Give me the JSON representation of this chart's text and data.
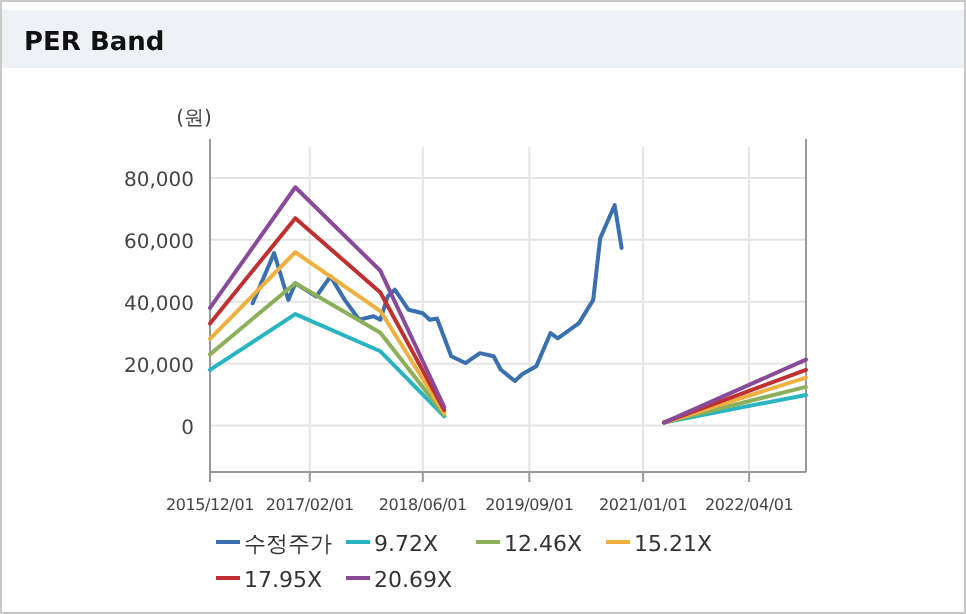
{
  "chart_data": {
    "type": "line",
    "title": "PER Band",
    "ylabel": "(원)",
    "xlim": [
      "2015-12-01",
      "2022-12-01"
    ],
    "xticks": [
      {
        "value": "2015-12-01",
        "label": "2015/12/01"
      },
      {
        "value": "2017-02-01",
        "label": "2017/02/01"
      },
      {
        "value": "2018-06-01",
        "label": "2018/06/01"
      },
      {
        "value": "2019-09-01",
        "label": "2019/09/01"
      },
      {
        "value": "2021-01-01",
        "label": "2021/01/01"
      },
      {
        "value": "2022-04-01",
        "label": "2022/04/01"
      }
    ],
    "ylim": [
      -15000,
      90000
    ],
    "yticks": [
      {
        "value": 0,
        "label": "0"
      },
      {
        "value": 20000,
        "label": "20,000"
      },
      {
        "value": 40000,
        "label": "40,000"
      },
      {
        "value": 60000,
        "label": "60,000"
      },
      {
        "value": 80000,
        "label": "80,000"
      }
    ],
    "grid": true,
    "legend": "bottom",
    "marker": "none",
    "line_style": "solid",
    "series": [
      {
        "name": "수정주가",
        "color": "#3a6fb0",
        "x": [
          "2016-06-01",
          "2016-09-01",
          "2016-11-01",
          "2016-12-01",
          "2017-03-01",
          "2017-05-01",
          "2017-07-01",
          "2017-09-01",
          "2017-11-01",
          "2017-12-01",
          "2018-01-01",
          "2018-02-01",
          "2018-04-01",
          "2018-06-01",
          "2018-07-01",
          "2018-08-01",
          "2018-10-01",
          "2018-12-01",
          "2019-02-01",
          "2019-04-01",
          "2019-05-01",
          "2019-07-01",
          "2019-08-01",
          "2019-10-01",
          "2019-12-01",
          "2020-01-01",
          "2020-04-01",
          "2020-06-01",
          "2020-07-01",
          "2020-09-01",
          "2020-10-01"
        ],
        "values": [
          39500,
          55700,
          40600,
          46000,
          41700,
          48200,
          40600,
          34200,
          35300,
          34200,
          41700,
          43900,
          37400,
          36300,
          34200,
          34600,
          22400,
          20200,
          23400,
          22400,
          18100,
          14400,
          16600,
          19200,
          29900,
          28200,
          33100,
          40600,
          60500,
          71200,
          57400
        ]
      },
      {
        "name": "9.72X",
        "color": "#28b4c0",
        "x": [
          "2015-12-01",
          "2016-12-01",
          "2017-12-01",
          "2018-09-01",
          "2020-01-01",
          "2021-04-01",
          "2022-12-01"
        ],
        "values": [
          18000,
          36000,
          24000,
          3000,
          null,
          1000,
          9900
        ]
      },
      {
        "name": "12.46X",
        "color": "#8cb05a",
        "x": [
          "2015-12-01",
          "2016-12-01",
          "2017-12-01",
          "2018-09-01",
          "2020-01-01",
          "2021-04-01",
          "2022-12-01"
        ],
        "values": [
          23000,
          46000,
          30000,
          3500,
          null,
          1000,
          12500
        ]
      },
      {
        "name": "15.21X",
        "color": "#f0b040",
        "x": [
          "2015-12-01",
          "2016-12-01",
          "2017-12-01",
          "2018-09-01",
          "2020-01-01",
          "2021-04-01",
          "2022-12-01"
        ],
        "values": [
          28000,
          56000,
          37000,
          4000,
          null,
          1000,
          15500
        ]
      },
      {
        "name": "17.95X",
        "color": "#c03030",
        "x": [
          "2015-12-01",
          "2016-12-01",
          "2017-12-01",
          "2018-09-01",
          "2020-01-01",
          "2021-04-01",
          "2022-12-01"
        ],
        "values": [
          33000,
          67000,
          43000,
          5000,
          null,
          1000,
          18000
        ]
      },
      {
        "name": "20.69X",
        "color": "#8a4a9a",
        "x": [
          "2015-12-01",
          "2016-12-01",
          "2017-12-01",
          "2018-09-01",
          "2020-01-01",
          "2021-04-01",
          "2022-12-01"
        ],
        "values": [
          38000,
          77000,
          50000,
          6000,
          null,
          1000,
          21300
        ]
      }
    ]
  }
}
